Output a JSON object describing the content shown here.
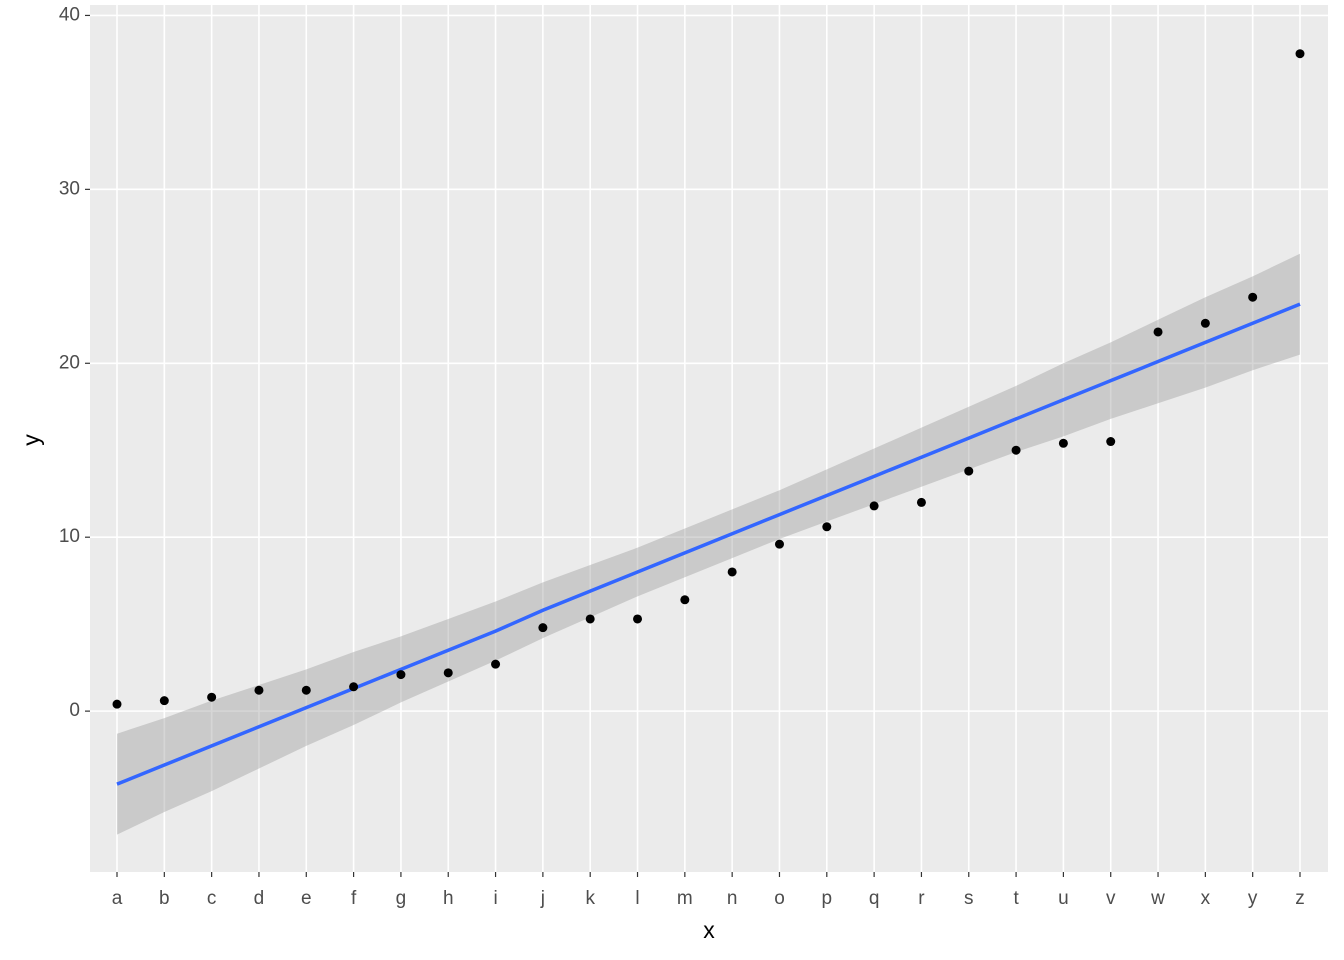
{
  "chart_data": {
    "type": "scatter",
    "x_label": "x",
    "y_label": "y",
    "categories": [
      "a",
      "b",
      "c",
      "d",
      "e",
      "f",
      "g",
      "h",
      "i",
      "j",
      "k",
      "l",
      "m",
      "n",
      "o",
      "p",
      "q",
      "r",
      "s",
      "t",
      "u",
      "v",
      "w",
      "x",
      "y",
      "z"
    ],
    "points": {
      "color": "#000000",
      "values": [
        0.4,
        0.6,
        0.8,
        1.2,
        1.2,
        1.4,
        2.1,
        2.2,
        2.7,
        4.8,
        5.3,
        5.3,
        6.4,
        8.0,
        9.6,
        10.6,
        11.8,
        12.0,
        13.8,
        15.0,
        15.4,
        15.5,
        21.8,
        22.3,
        23.8,
        37.8
      ]
    },
    "fit": {
      "color": "#3366FF",
      "values": [
        -4.2,
        -3.1,
        -2.0,
        -0.9,
        0.2,
        1.3,
        2.4,
        3.5,
        4.6,
        5.8,
        6.9,
        8.0,
        9.1,
        10.2,
        11.3,
        12.4,
        13.5,
        14.6,
        15.7,
        16.8,
        17.9,
        19.0,
        20.1,
        21.2,
        22.3,
        23.4
      ]
    },
    "band": {
      "color": "#999999",
      "lower": [
        -7.1,
        -5.8,
        -4.6,
        -3.3,
        -2.0,
        -0.8,
        0.5,
        1.7,
        2.9,
        4.2,
        5.4,
        6.6,
        7.7,
        8.8,
        9.9,
        10.9,
        11.9,
        12.9,
        13.9,
        14.9,
        15.8,
        16.8,
        17.7,
        18.6,
        19.6,
        20.5
      ],
      "upper": [
        -1.3,
        -0.4,
        0.6,
        1.5,
        2.4,
        3.4,
        4.3,
        5.3,
        6.3,
        7.4,
        8.4,
        9.4,
        10.5,
        11.6,
        12.7,
        13.9,
        15.1,
        16.3,
        17.5,
        18.7,
        20.0,
        21.2,
        22.5,
        23.8,
        25.0,
        26.3
      ]
    },
    "ylim": [
      -9.25,
      40.6
    ],
    "yticks": [
      0,
      10,
      20,
      30,
      40
    ],
    "grid": true
  }
}
